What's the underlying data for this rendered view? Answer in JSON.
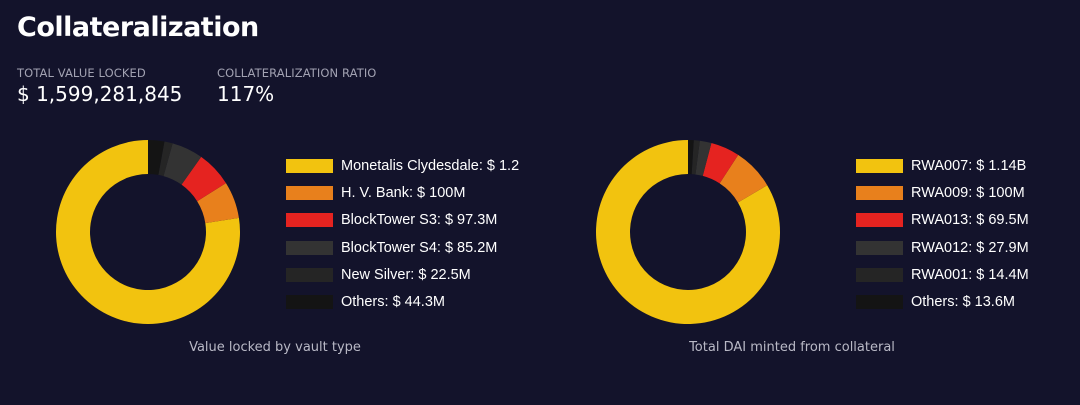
{
  "page": {
    "title": "Collateralization",
    "tvl_label": "TOTAL VALUE LOCKED",
    "tvl_value": "$ 1,599,281,845",
    "ratio_label": "COLLATERALIZATION RATIO",
    "ratio_value": "117%"
  },
  "chart_data": [
    {
      "type": "pie",
      "donut": true,
      "caption": "Value locked by vault type",
      "legend_position": "right",
      "slices": [
        {
          "label": "Monetalis Clydesdale: $ 1.2",
          "value": 1200000000,
          "color": "#f2c30f"
        },
        {
          "label": "H. V. Bank: $ 100M",
          "value": 100000000,
          "color": "#e8801c"
        },
        {
          "label": "BlockTower S3: $ 97.3M",
          "value": 97300000,
          "color": "#e52320"
        },
        {
          "label": "BlockTower S4: $ 85.2M",
          "value": 85200000,
          "color": "#333333"
        },
        {
          "label": "New Silver: $ 22.5M",
          "value": 22500000,
          "color": "#252525"
        },
        {
          "label": "Others: $ 44.3M",
          "value": 44300000,
          "color": "#141414"
        }
      ]
    },
    {
      "type": "pie",
      "donut": true,
      "caption": "Total DAI minted from collateral",
      "legend_position": "right",
      "slices": [
        {
          "label": "RWA007: $ 1.14B",
          "value": 1140000000,
          "color": "#f2c30f"
        },
        {
          "label": "RWA009: $ 100M",
          "value": 100000000,
          "color": "#e8801c"
        },
        {
          "label": "RWA013: $ 69.5M",
          "value": 69500000,
          "color": "#e52320"
        },
        {
          "label": "RWA012: $ 27.9M",
          "value": 27900000,
          "color": "#333333"
        },
        {
          "label": "RWA001: $ 14.4M",
          "value": 14400000,
          "color": "#252525"
        },
        {
          "label": "Others: $ 13.6M",
          "value": 13600000,
          "color": "#141414"
        }
      ]
    }
  ]
}
